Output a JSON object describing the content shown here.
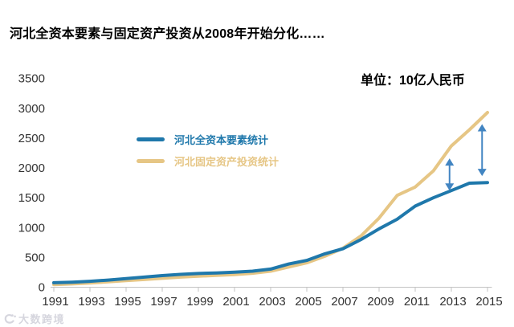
{
  "header": {
    "title": "河北全资本要素与固定资产投资从2008年开始分化……"
  },
  "chart_data": {
    "type": "line",
    "title": "河北全资本要素与固定资产投资从2008年开始分化……",
    "unit_label": "单位：10亿人民币",
    "xlabel": "",
    "ylabel": "",
    "xlim": [
      1991,
      2015
    ],
    "ylim": [
      0,
      3500
    ],
    "grid": false,
    "legend_position": "inside-upper-left",
    "x": [
      1991,
      1992,
      1993,
      1994,
      1995,
      1996,
      1997,
      1998,
      1999,
      2000,
      2001,
      2002,
      2003,
      2004,
      2005,
      2006,
      2007,
      2008,
      2009,
      2010,
      2011,
      2012,
      2013,
      2014,
      2015
    ],
    "series": [
      {
        "name": "河北全资本要素统计",
        "color": "#1f78ab",
        "values": [
          75,
          85,
          100,
          120,
          145,
          170,
          195,
          215,
          230,
          240,
          252,
          270,
          305,
          390,
          450,
          560,
          645,
          800,
          980,
          1140,
          1360,
          1500,
          1620,
          1745,
          1755
        ]
      },
      {
        "name": "河北固定资产投资统计",
        "color": "#e6c685",
        "values": [
          45,
          55,
          70,
          90,
          110,
          130,
          150,
          170,
          185,
          200,
          212,
          235,
          270,
          340,
          410,
          520,
          655,
          860,
          1160,
          1540,
          1680,
          1950,
          2370,
          2640,
          2930
        ]
      }
    ],
    "xtick_labels": [
      "1991",
      "1993",
      "1995",
      "1997",
      "1999",
      "2001",
      "2003",
      "2005",
      "2007",
      "2009",
      "2011",
      "2013",
      "2015"
    ],
    "ytick_values": [
      0,
      500,
      1000,
      1500,
      2000,
      2500,
      3000,
      3500
    ],
    "annotations": {
      "gap_arrows": [
        {
          "x": 2012.9,
          "from": 1620,
          "to": 2160
        },
        {
          "x": 2014.7,
          "from": 1865,
          "to": 2735
        }
      ],
      "arrow_color": "#4285c2"
    },
    "axis_color": "#c3c3c3",
    "tick_text_color": "#333333"
  },
  "footer": {
    "watermark": "大数跨境"
  }
}
